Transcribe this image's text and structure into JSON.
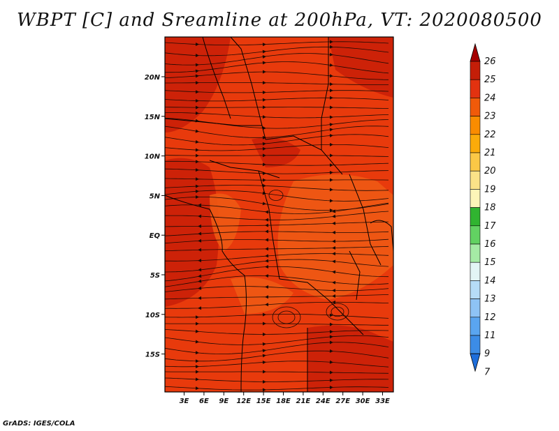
{
  "title": "WBPT [C] and Sreamline at 200hPa, VT: 2020080500",
  "credit": "GrADS: IGES/COLA",
  "map": {
    "x_ticks": [
      "3E",
      "6E",
      "9E",
      "12E",
      "15E",
      "18E",
      "21E",
      "24E",
      "27E",
      "30E",
      "33E"
    ],
    "y_ticks": [
      "20N",
      "15N",
      "10N",
      "5N",
      "EQ",
      "5S",
      "10S",
      "15S"
    ],
    "fill_colors": {
      "dominant": "#e83a0c",
      "darker": "#c81e08",
      "lighter": "#ee5a14"
    }
  },
  "colorbar": {
    "labels": [
      "26",
      "25",
      "24",
      "23",
      "22",
      "21",
      "20",
      "19",
      "18",
      "17",
      "16",
      "15",
      "14",
      "13",
      "12",
      "11",
      "9",
      "7"
    ],
    "colors": [
      "#a50000",
      "#c41e08",
      "#e23210",
      "#f05a0a",
      "#fa8c00",
      "#fbab0a",
      "#fbc846",
      "#fbe288",
      "#fcf5b8",
      "#30b430",
      "#62d262",
      "#a5eba5",
      "#e2f5f5",
      "#b6dcf7",
      "#8ec3f5",
      "#5aa5f0",
      "#3c8ce6",
      "#1e6edb"
    ]
  }
}
